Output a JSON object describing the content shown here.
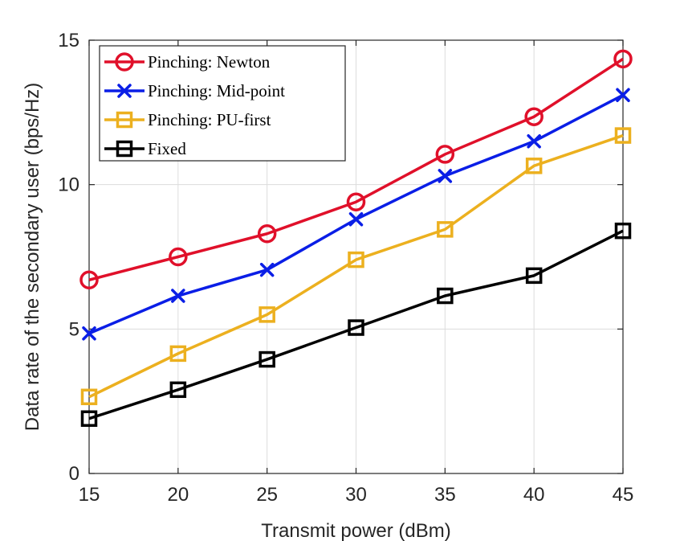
{
  "chart_data": {
    "type": "line",
    "title": "",
    "xlabel": "Transmit power (dBm)",
    "ylabel": "Data rate of the secondary user (bps/Hz)",
    "x": [
      15,
      20,
      25,
      30,
      35,
      40,
      45
    ],
    "xlim": [
      15,
      45
    ],
    "ylim": [
      0,
      15
    ],
    "xticks": [
      "15",
      "20",
      "25",
      "30",
      "35",
      "40",
      "45"
    ],
    "yticks": [
      "0",
      "5",
      "10",
      "15"
    ],
    "grid": true,
    "legend_position": "top-left",
    "series": [
      {
        "name": "Pinching: Newton",
        "color": "#e0102a",
        "marker": "circle",
        "values": [
          6.7,
          7.5,
          8.3,
          9.4,
          11.05,
          12.35,
          14.35
        ]
      },
      {
        "name": "Pinching: Mid-point",
        "color": "#0a1ee6",
        "marker": "x",
        "values": [
          4.85,
          6.15,
          7.05,
          8.8,
          10.3,
          11.5,
          13.1
        ]
      },
      {
        "name": "Pinching: PU-first",
        "color": "#ecb01f",
        "marker": "square",
        "values": [
          2.65,
          4.15,
          5.5,
          7.4,
          8.45,
          10.65,
          11.7
        ]
      },
      {
        "name": "Fixed",
        "color": "#000000",
        "marker": "square",
        "values": [
          1.9,
          2.9,
          3.95,
          5.05,
          6.15,
          6.85,
          8.4
        ]
      }
    ]
  }
}
